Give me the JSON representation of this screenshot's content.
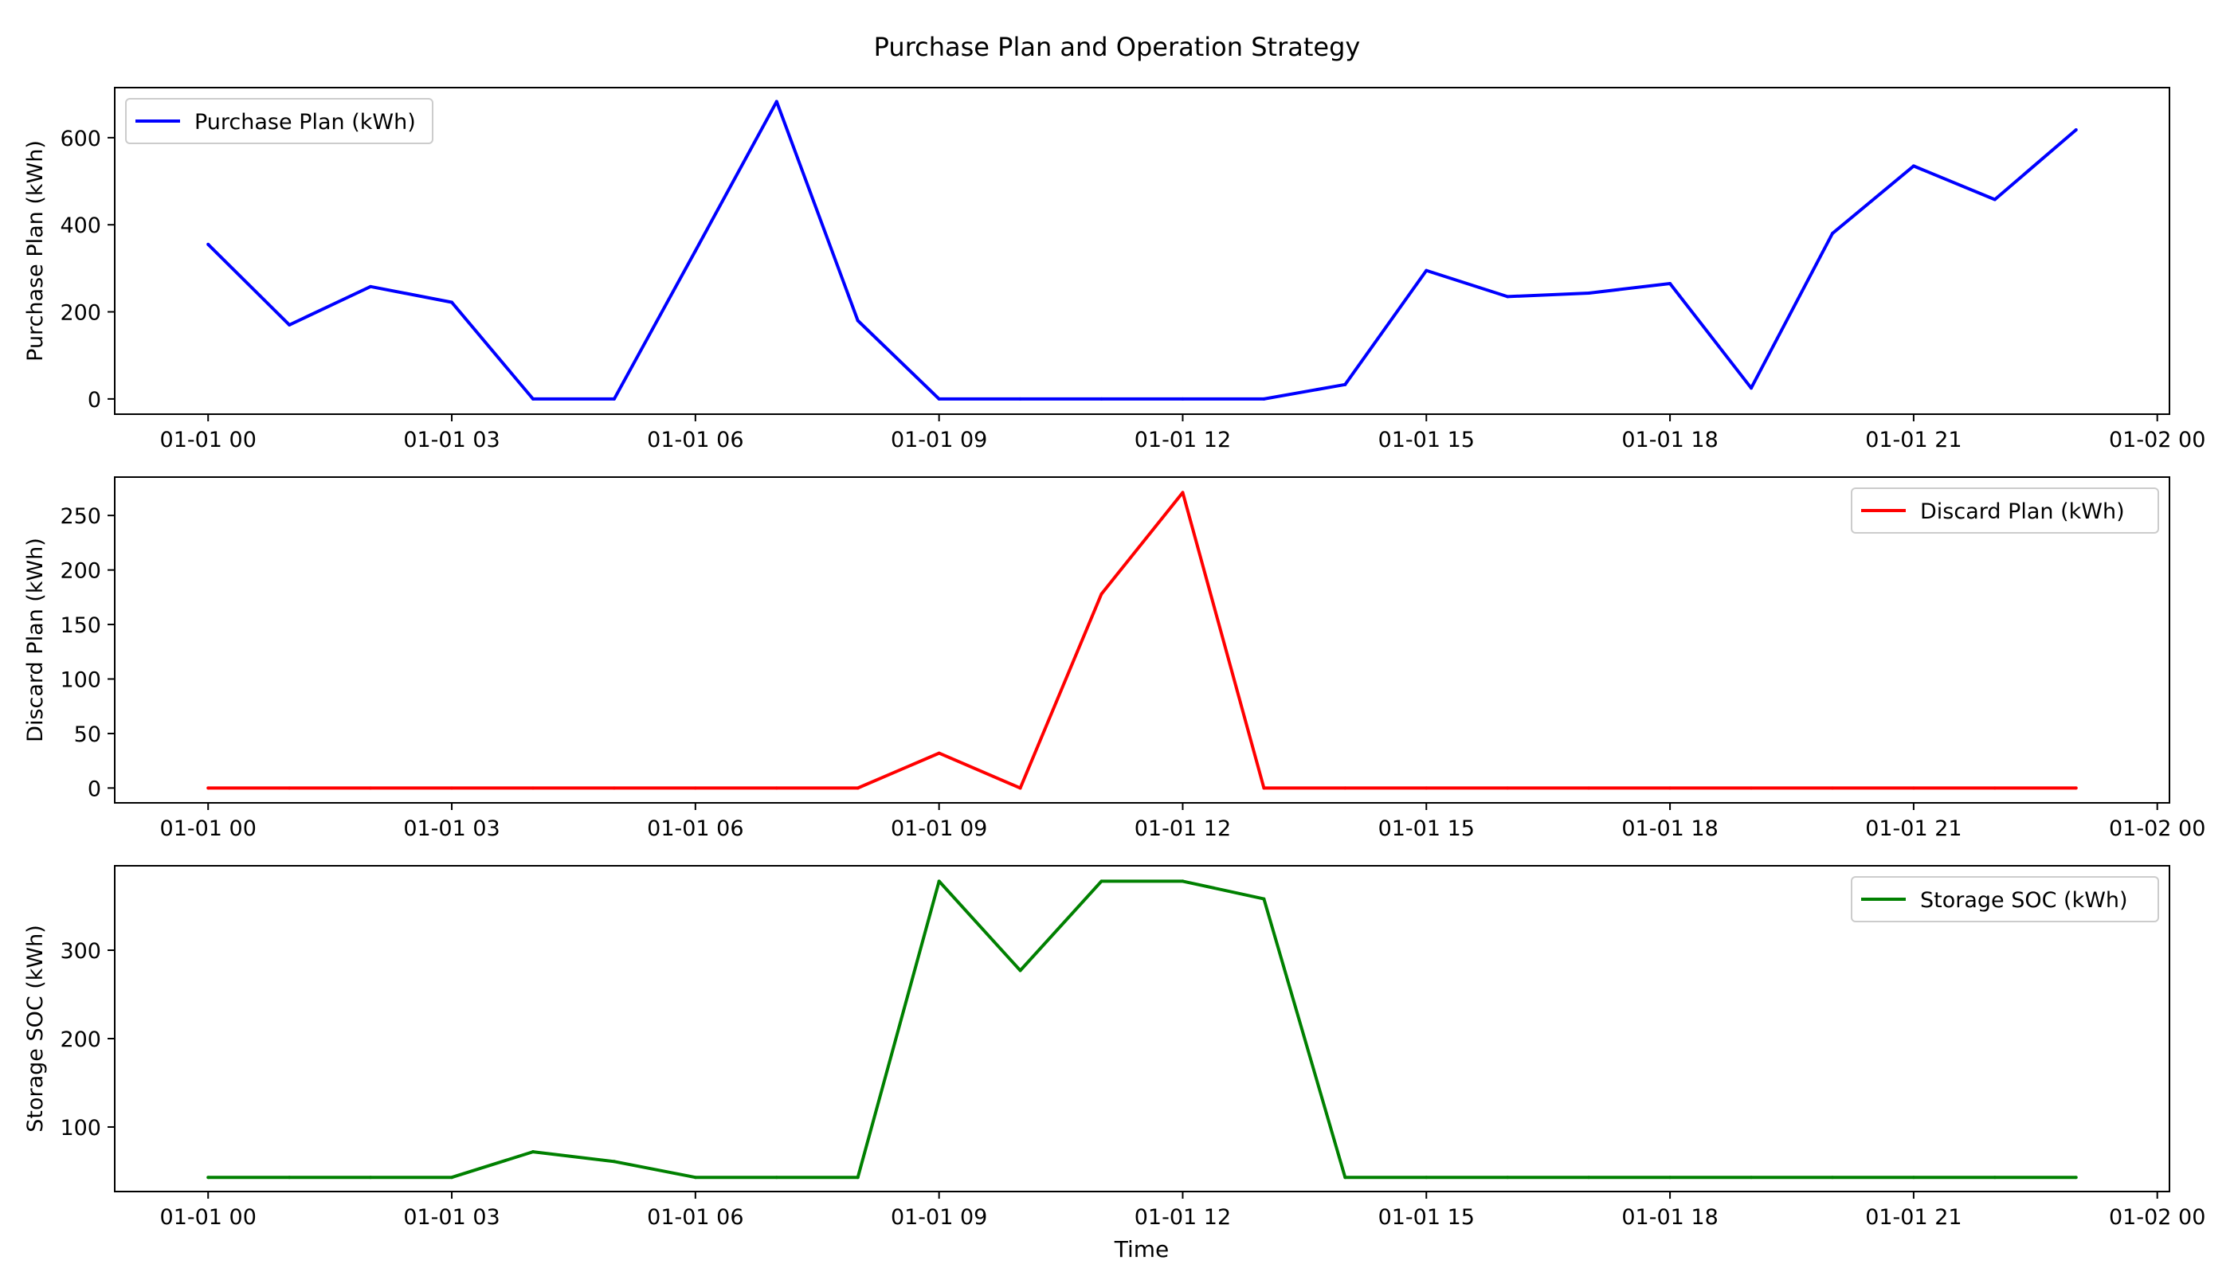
{
  "figure": {
    "title": "Purchase Plan and Operation Strategy",
    "xlabel": "Time"
  },
  "chart_data": [
    {
      "type": "line",
      "title": "",
      "xlabel": "",
      "ylabel": "Purchase Plan (kWh)",
      "x_ticks": [
        "01-01 00",
        "01-01 03",
        "01-01 06",
        "01-01 09",
        "01-01 12",
        "01-01 15",
        "01-01 18",
        "01-01 21",
        "01-02 00"
      ],
      "y_ticks": [
        0,
        200,
        400,
        600
      ],
      "ylim": [
        -35,
        715
      ],
      "xlim_hours": [
        -1.15,
        24.15
      ],
      "legend_position": "upper-left",
      "series": [
        {
          "name": "Purchase Plan (kWh)",
          "color": "#0000ff",
          "x_hours": [
            0,
            1,
            2,
            3,
            4,
            5,
            6,
            7,
            8,
            9,
            10,
            11,
            12,
            13,
            14,
            15,
            16,
            17,
            18,
            19,
            20,
            21,
            22,
            23
          ],
          "values": [
            355,
            170,
            258,
            222,
            0,
            0,
            340,
            683,
            180,
            0,
            0,
            0,
            0,
            0,
            33,
            295,
            235,
            243,
            265,
            25,
            380,
            535,
            458,
            618
          ]
        }
      ]
    },
    {
      "type": "line",
      "title": "",
      "xlabel": "",
      "ylabel": "Discard Plan (kWh)",
      "x_ticks": [
        "01-01 00",
        "01-01 03",
        "01-01 06",
        "01-01 09",
        "01-01 12",
        "01-01 15",
        "01-01 18",
        "01-01 21",
        "01-02 00"
      ],
      "y_ticks": [
        0,
        50,
        100,
        150,
        200,
        250
      ],
      "ylim": [
        -13.6,
        285.2
      ],
      "xlim_hours": [
        -1.15,
        24.15
      ],
      "legend_position": "upper-right",
      "series": [
        {
          "name": "Discard Plan (kWh)",
          "color": "#ff0000",
          "x_hours": [
            0,
            1,
            2,
            3,
            4,
            5,
            6,
            7,
            8,
            9,
            10,
            11,
            12,
            13,
            14,
            15,
            16,
            17,
            18,
            19,
            20,
            21,
            22,
            23
          ],
          "values": [
            0,
            0,
            0,
            0,
            0,
            0,
            0,
            0,
            0,
            32,
            0,
            178,
            271,
            0,
            0,
            0,
            0,
            0,
            0,
            0,
            0,
            0,
            0,
            0
          ]
        }
      ]
    },
    {
      "type": "line",
      "title": "",
      "xlabel": "Time",
      "ylabel": "Storage SOC (kWh)",
      "x_ticks": [
        "01-01 00",
        "01-01 03",
        "01-01 06",
        "01-01 09",
        "01-01 12",
        "01-01 15",
        "01-01 18",
        "01-01 21",
        "01-02 00"
      ],
      "y_ticks": [
        100,
        200,
        300
      ],
      "ylim": [
        27,
        395.5
      ],
      "xlim_hours": [
        -1.15,
        24.15
      ],
      "legend_position": "upper-right",
      "series": [
        {
          "name": "Storage SOC (kWh)",
          "color": "#008000",
          "x_hours": [
            0,
            1,
            2,
            3,
            4,
            5,
            6,
            7,
            8,
            9,
            10,
            11,
            12,
            13,
            14,
            15,
            16,
            17,
            18,
            19,
            20,
            21,
            22,
            23
          ],
          "values": [
            43,
            43,
            43,
            43,
            72,
            61,
            43,
            43,
            43,
            378,
            277,
            378,
            378,
            358,
            43,
            43,
            43,
            43,
            43,
            43,
            43,
            43,
            43,
            43
          ]
        }
      ]
    }
  ]
}
